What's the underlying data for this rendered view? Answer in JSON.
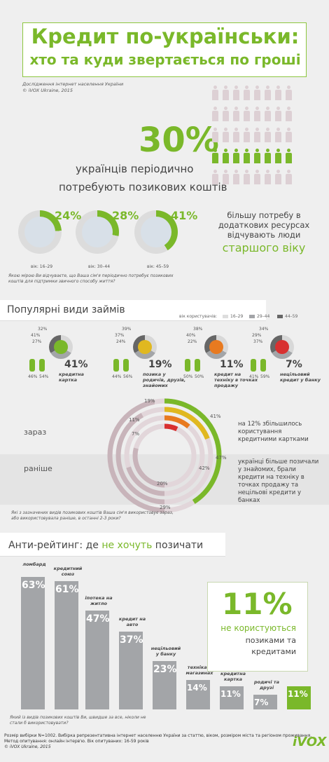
{
  "header": {
    "title_line1": "Кредит по-українськи:",
    "title_line2": "хто та куди звертається по гроші",
    "source": "Дослідження інтернет населення України",
    "copyright": "© iVOX Ukraine, 2015"
  },
  "hero": {
    "percent": "30%",
    "line1": "українців періодично",
    "line2": "потребують позикових коштів"
  },
  "age_groups": [
    {
      "pct": "24%",
      "age": "вік: 16–29",
      "value": 24
    },
    {
      "pct": "28%",
      "age": "вік: 30–44",
      "value": 28
    },
    {
      "pct": "41%",
      "age": "вік: 45–59",
      "value": 41
    }
  ],
  "need": {
    "text": "більшу потребу в додаткових ресурсах відчувають люди",
    "highlight": "старшого віку"
  },
  "question1": "Якою мірою Ви відчуваєте, що Ваша сім'я періодично потребує позикових коштів для підтримки звичного способу життя?",
  "section2": {
    "title": "Популярні види займів",
    "legend_label": "вік користувачів:",
    "legend": [
      "16–29",
      "29–44",
      "44–59"
    ]
  },
  "loans": [
    {
      "pct": "41%",
      "label": "кредитна картка",
      "ages": [
        "32%",
        "41%",
        "27%"
      ],
      "gender": [
        "46%",
        "54%"
      ]
    },
    {
      "pct": "19%",
      "label": "позика у родичів, друзів, знайомих",
      "ages": [
        "39%",
        "37%",
        "24%"
      ],
      "gender": [
        "44%",
        "56%"
      ]
    },
    {
      "pct": "11%",
      "label": "кредит на техніку в точках продажу",
      "ages": [
        "38%",
        "40%",
        "22%"
      ],
      "gender": [
        "50%",
        "50%"
      ]
    },
    {
      "pct": "7%",
      "label": "нецільовий кредит у банку",
      "ages": [
        "34%",
        "29%",
        "37%"
      ],
      "gender": [
        "41%",
        "59%"
      ]
    }
  ],
  "arcs": {
    "now": [
      "19%",
      "11%",
      "7%",
      "41%"
    ],
    "before": [
      "47%",
      "42%",
      "20%",
      "29%"
    ]
  },
  "labels": {
    "zaraz": "зараз",
    "ranishe": "раніше"
  },
  "note_now": "на 12% збільшилось користування кредитними картками",
  "note_before": "українці більше позичали у знайомих, брали кредити на техніку в точках продажу та нецільові кредити у банках",
  "question2": "Які з зазначених видів позикових коштів Ваша сім'я використовує зараз, або використовувала раніше, в останні 2-3 роки?",
  "section3": {
    "title_prefix": "Анти-рейтинг: де ",
    "title_highlight": "не хочуть",
    "title_suffix": " позичати"
  },
  "chart_data": {
    "type": "bar",
    "categories": [
      "ломбард",
      "кредитний союз",
      "іпотека на житло",
      "кредит на авто",
      "нецільовий у банку",
      "техніка у магазинах",
      "кредитна картка",
      "родичі та друзі",
      "не користуються"
    ],
    "values": [
      63,
      61,
      47,
      37,
      23,
      14,
      11,
      7,
      11
    ],
    "labels": [
      "63%",
      "61%",
      "47%",
      "37%",
      "23%",
      "14%",
      "11%",
      "7%",
      "11%"
    ]
  },
  "box11": {
    "pct": "11%",
    "line1": "не користуються",
    "line2": "позиками та",
    "line3": "кредитами"
  },
  "question3": "Який із видів позикових коштів Ви, швидше за все, ніколи не стали б використовувати?",
  "footer": {
    "line1": "Розмір вибірки N=1002. Вибірка репрезентативна інтернет населенню України за статтю, віком, розміром міста та регіоном проживання.",
    "line2": "Метод опитування: онлайн інтерв'ю. Вік опитуваних: 16-59 років",
    "line3": "© iVOX Ukraine, 2015"
  },
  "logo": "iVOX",
  "colors": {
    "green": "#7ab82a",
    "gray": "#a3a5a8",
    "pink": "#e4d8dc",
    "teal": "#2aa89a"
  }
}
